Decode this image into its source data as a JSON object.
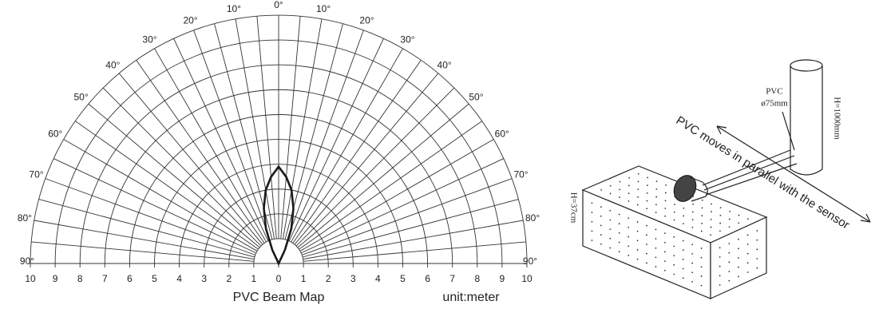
{
  "chart_data": {
    "type": "polar-beam",
    "title": "PVC Beam Map",
    "unit": "unit:meter",
    "x": [
      -25,
      -20,
      -15,
      -10,
      -5,
      0,
      5,
      10,
      15,
      20,
      25
    ],
    "series": [
      {
        "color": "#1a1a1a",
        "values": [
          0.6,
          1.5,
          2.3,
          3.0,
          3.5,
          3.9,
          3.5,
          3.0,
          2.3,
          1.5,
          0.6
        ]
      }
    ],
    "rlim": [
      0,
      10
    ],
    "xticks": [
      {
        "value": -10,
        "label": "10"
      },
      {
        "value": -9,
        "label": "9"
      },
      {
        "value": -8,
        "label": "8"
      },
      {
        "value": -7,
        "label": "7"
      },
      {
        "value": -6,
        "label": "6"
      },
      {
        "value": -5,
        "label": "5"
      },
      {
        "value": -4,
        "label": "4"
      },
      {
        "value": -3,
        "label": "3"
      },
      {
        "value": -2,
        "label": "2"
      },
      {
        "value": -1,
        "label": "1"
      },
      0,
      1,
      2,
      3,
      4,
      5,
      6,
      7,
      8,
      9,
      10
    ],
    "angleticks": [
      {
        "value": -90,
        "label": "90°"
      },
      {
        "value": -80,
        "label": "80°"
      },
      {
        "value": -70,
        "label": "70°"
      },
      {
        "value": -60,
        "label": "60°"
      },
      {
        "value": -50,
        "label": "50°"
      },
      {
        "value": -40,
        "label": "40°"
      },
      {
        "value": -30,
        "label": "30°"
      },
      {
        "value": -20,
        "label": "20°"
      },
      {
        "value": -10,
        "label": "10°"
      },
      {
        "value": 0,
        "label": "0°"
      },
      {
        "value": 10,
        "label": "10°"
      },
      {
        "value": 20,
        "label": "20°"
      },
      {
        "value": 30,
        "label": "30°"
      },
      {
        "value": 40,
        "label": "40°"
      },
      {
        "value": 50,
        "label": "50°"
      },
      {
        "value": 60,
        "label": "60°"
      },
      {
        "value": 70,
        "label": "70°"
      },
      {
        "value": 80,
        "label": "80°"
      },
      {
        "value": 90,
        "label": "90°"
      }
    ],
    "grid": true
  },
  "diagram": {
    "target": "PVC",
    "diameter": "ø75mm",
    "height": "H=1000mm",
    "motion": "PVC moves in parallel with the sensor",
    "sensor_height": "H=37cm"
  }
}
